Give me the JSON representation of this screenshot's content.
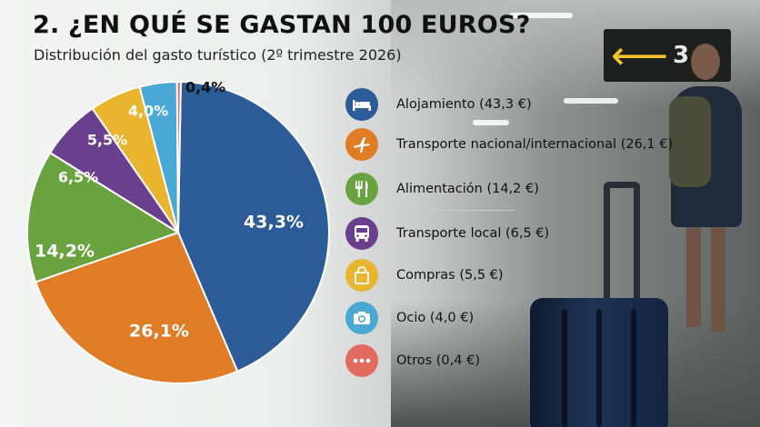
{
  "header": {
    "title": "2. ¿EN QUÉ SE GASTAN 100 EUROS?",
    "subtitle": "Distribución del gasto turístico (2º trimestre 2026)"
  },
  "chart_data": {
    "type": "pie",
    "title": "2. ¿EN QUÉ SE GASTAN 100 EUROS?",
    "subtitle": "Distribución del gasto turístico (2º trimestre 2026)",
    "slices": [
      {
        "name": "Alojamiento",
        "value": 43.3,
        "label": "43,3%",
        "legend": "Alojamiento (43,3 €)",
        "color": "#2c5c98",
        "icon": "bed-icon"
      },
      {
        "name": "Transporte nacional/internacional",
        "value": 26.1,
        "label": "26,1%",
        "legend": "Transporte nacional/internacional (26,1 €)",
        "color": "#e07b26",
        "icon": "airplane-icon"
      },
      {
        "name": "Alimentación",
        "value": 14.2,
        "label": "14,2%",
        "legend": "Alimentación (14,2 €)",
        "color": "#6aa23f",
        "icon": "fork-knife-icon"
      },
      {
        "name": "Transporte local",
        "value": 6.5,
        "label": "6,5%",
        "legend": "Transporte local (6,5 €)",
        "color": "#6a3f8e",
        "icon": "bus-icon"
      },
      {
        "name": "Compras",
        "value": 5.5,
        "label": "5,5%",
        "legend": "Compras (5,5 €)",
        "color": "#e9b52f",
        "icon": "shopping-bag-icon"
      },
      {
        "name": "Ocio",
        "value": 4.0,
        "label": "4,0%",
        "legend": "Ocio (4,0 €)",
        "color": "#4aa9d4",
        "icon": "camera-icon"
      },
      {
        "name": "Otros",
        "value": 0.4,
        "label": "0,4%",
        "legend": "Otros (0,4 €)",
        "color": "#e36a5f",
        "icon": "more-dots-icon"
      }
    ],
    "legend_position": "right"
  },
  "background": {
    "sign_arrow": "⟵",
    "sign_number": "3"
  }
}
